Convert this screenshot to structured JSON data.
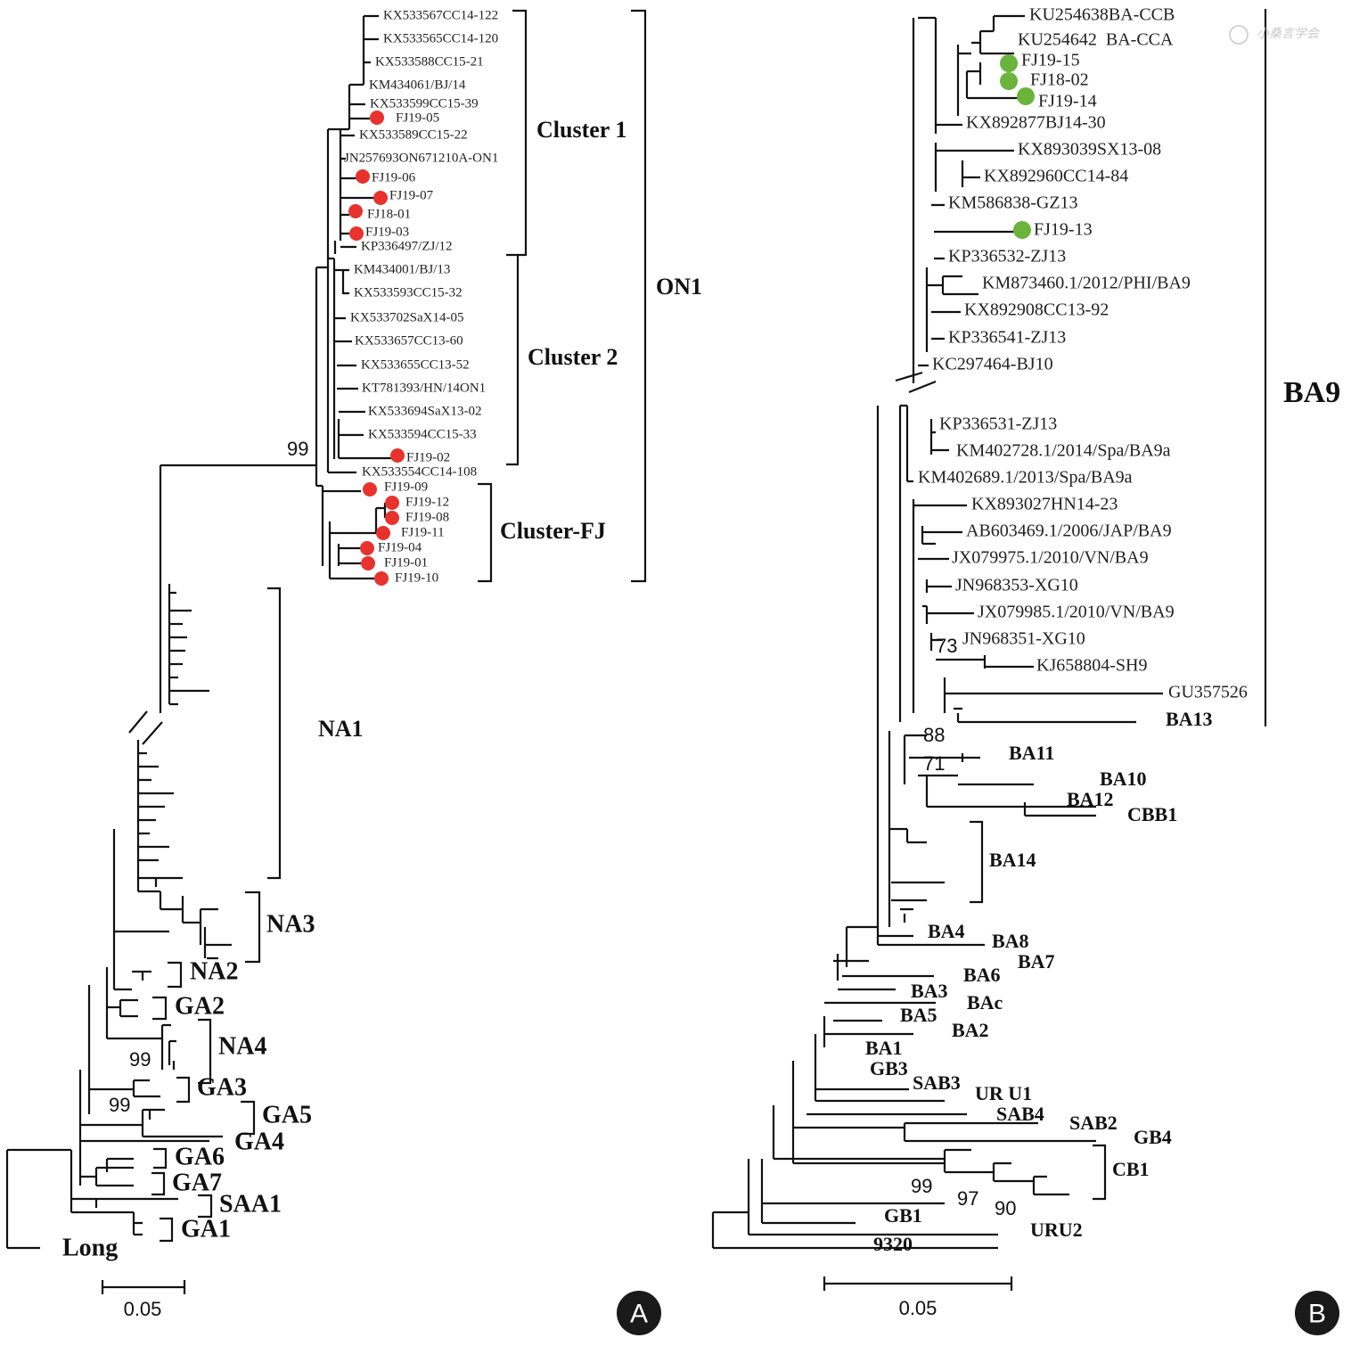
{
  "colors": {
    "line": "#111111",
    "fj_dot": "#e8322d",
    "fj_dot_b": "#6ab43c",
    "panel_badge": "#1a1a1a"
  },
  "watermark": "小桑言学会",
  "panel_a": {
    "letter": "A",
    "taxa": [
      "KX533567CC14-122",
      "KX533565CC14-120",
      "KX533588CC15-21",
      "KM434061/BJ/14",
      "KX533599CC15-39",
      "FJ19-05",
      "KX533589CC15-22",
      "JN257693ON671210A-ON1",
      "FJ19-06",
      "FJ19-07",
      "FJ18-01",
      "FJ19-03",
      "KP336497/ZJ/12",
      "KM434001/BJ/13",
      "KX533593CC15-32",
      "KX533702SaX14-05",
      "KX533657CC13-60",
      "KX533655CC13-52",
      "KT781393/HN/14ON1",
      "KX533694SaX13-02",
      "KX533594CC15-33",
      "FJ19-02",
      "KX533554CC14-108",
      "FJ19-09",
      "FJ19-12",
      "FJ19-08",
      "FJ19-11",
      "FJ19-04",
      "FJ19-01",
      "FJ19-10"
    ],
    "clusters": {
      "c1": "Cluster 1",
      "c2": "Cluster 2",
      "cfj": "Cluster-FJ",
      "on1": "ON1",
      "na1": "NA1",
      "na3": "NA3",
      "na2": "NA2",
      "ga2": "GA2",
      "na4": "NA4",
      "ga3": "GA3",
      "ga5": "GA5",
      "ga4": "GA4",
      "ga6": "GA6",
      "ga7": "GA7",
      "saa1": "SAA1",
      "ga1": "GA1",
      "long": "Long"
    },
    "bootstrap": [
      "99",
      "99",
      "99"
    ],
    "scale": "0.05"
  },
  "panel_b": {
    "letter": "B",
    "taxa": [
      "KU254638BA-CCB",
      "KU254642  BA-CCA",
      "FJ19-15",
      "FJ18-02",
      "FJ19-14",
      "KX892877BJ14-30",
      "KX893039SX13-08",
      "KX892960CC14-84",
      "KM586838-GZ13",
      "FJ19-13",
      "KP336532-ZJ13",
      "KM873460.1/2012/PHI/BA9",
      "KX892908CC13-92",
      "KP336541-ZJ13",
      "KC297464-BJ10",
      "KP336531-ZJ13",
      "KM402728.1/2014/Spa/BA9a",
      "KM402689.1/2013/Spa/BA9a",
      "KX893027HN14-23",
      "AB603469.1/2006/JAP/BA9",
      "JX079975.1/2010/VN/BA9",
      "JN968353-XG10",
      "JX079985.1/2010/VN/BA9",
      "JN968351-XG10",
      "KJ658804-SH9",
      "GU357526"
    ],
    "clusters": {
      "ba9": "BA9",
      "ba13": "BA13",
      "ba11": "BA11",
      "ba10": "BA10",
      "ba12": "BA12",
      "cbb1": "CBB1",
      "ba14": "BA14",
      "ba4": "BA4",
      "ba8": "BA8",
      "ba7": "BA7",
      "ba6": "BA6",
      "ba3": "BA3",
      "bac": "BAc",
      "ba5": "BA5",
      "ba2": "BA2",
      "ba1": "BA1",
      "gb3": "GB3",
      "sab3": "SAB3",
      "uru1": "UR U1",
      "sab4": "SAB4",
      "sab2": "SAB2",
      "gb4": "GB4",
      "cb1": "CB1",
      "gb1": "GB1",
      "uru2": "URU2",
      "n9320": "9320"
    },
    "bootstrap": [
      "73",
      "88",
      "71",
      "99",
      "97",
      "90"
    ],
    "scale": "0.05"
  }
}
